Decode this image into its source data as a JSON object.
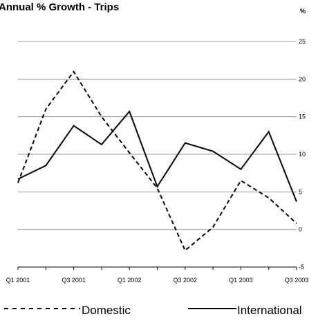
{
  "chart_data": {
    "type": "line",
    "title": "Annual % Growth - Trips",
    "unit_label": "%",
    "x": [
      "Q1 2001",
      "Q2 2001",
      "Q3 2001",
      "Q4 2001",
      "Q1 2002",
      "Q2 2002",
      "Q3 2002",
      "Q4 2002",
      "Q1 2003",
      "Q2 2003",
      "Q3 2003"
    ],
    "x_tick_labels": [
      "Q1 2001",
      "Q3 2001",
      "Q1 2002",
      "Q3 2002",
      "Q1 2003",
      "Q3 2003"
    ],
    "ylim": [
      -5,
      25
    ],
    "y_ticks": [
      "25",
      "20",
      "15",
      "10",
      "5",
      "0",
      "-5"
    ],
    "grid": true,
    "legend_position": "bottom",
    "series": [
      {
        "name": "Domestic",
        "line_style": "dashed",
        "color": "#000000",
        "values": [
          6.2,
          16.0,
          21.0,
          15.0,
          10.2,
          5.5,
          -2.8,
          0.3,
          6.5,
          4.2,
          0.8
        ]
      },
      {
        "name": "International",
        "line_style": "solid",
        "color": "#000000",
        "values": [
          6.7,
          8.5,
          13.8,
          11.3,
          15.7,
          5.7,
          11.5,
          10.4,
          8.0,
          13.0,
          3.7
        ]
      }
    ],
    "gridline_color": "#999999",
    "axis_color": "#000000"
  }
}
